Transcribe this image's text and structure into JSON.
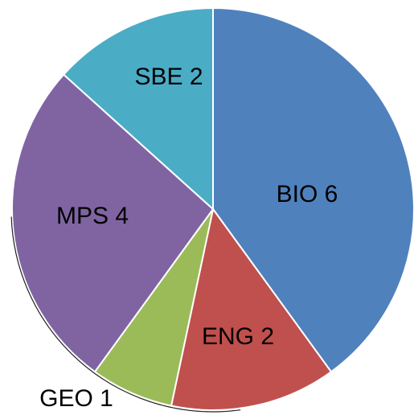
{
  "chart_data": {
    "type": "pie",
    "categories": [
      "BIO",
      "ENG",
      "GEO",
      "MPS",
      "SBE"
    ],
    "values": [
      6,
      2,
      1,
      4,
      2
    ],
    "colors": [
      "#4f81bd",
      "#c0504d",
      "#9bbb59",
      "#8064a2",
      "#4bacc6"
    ]
  }
}
